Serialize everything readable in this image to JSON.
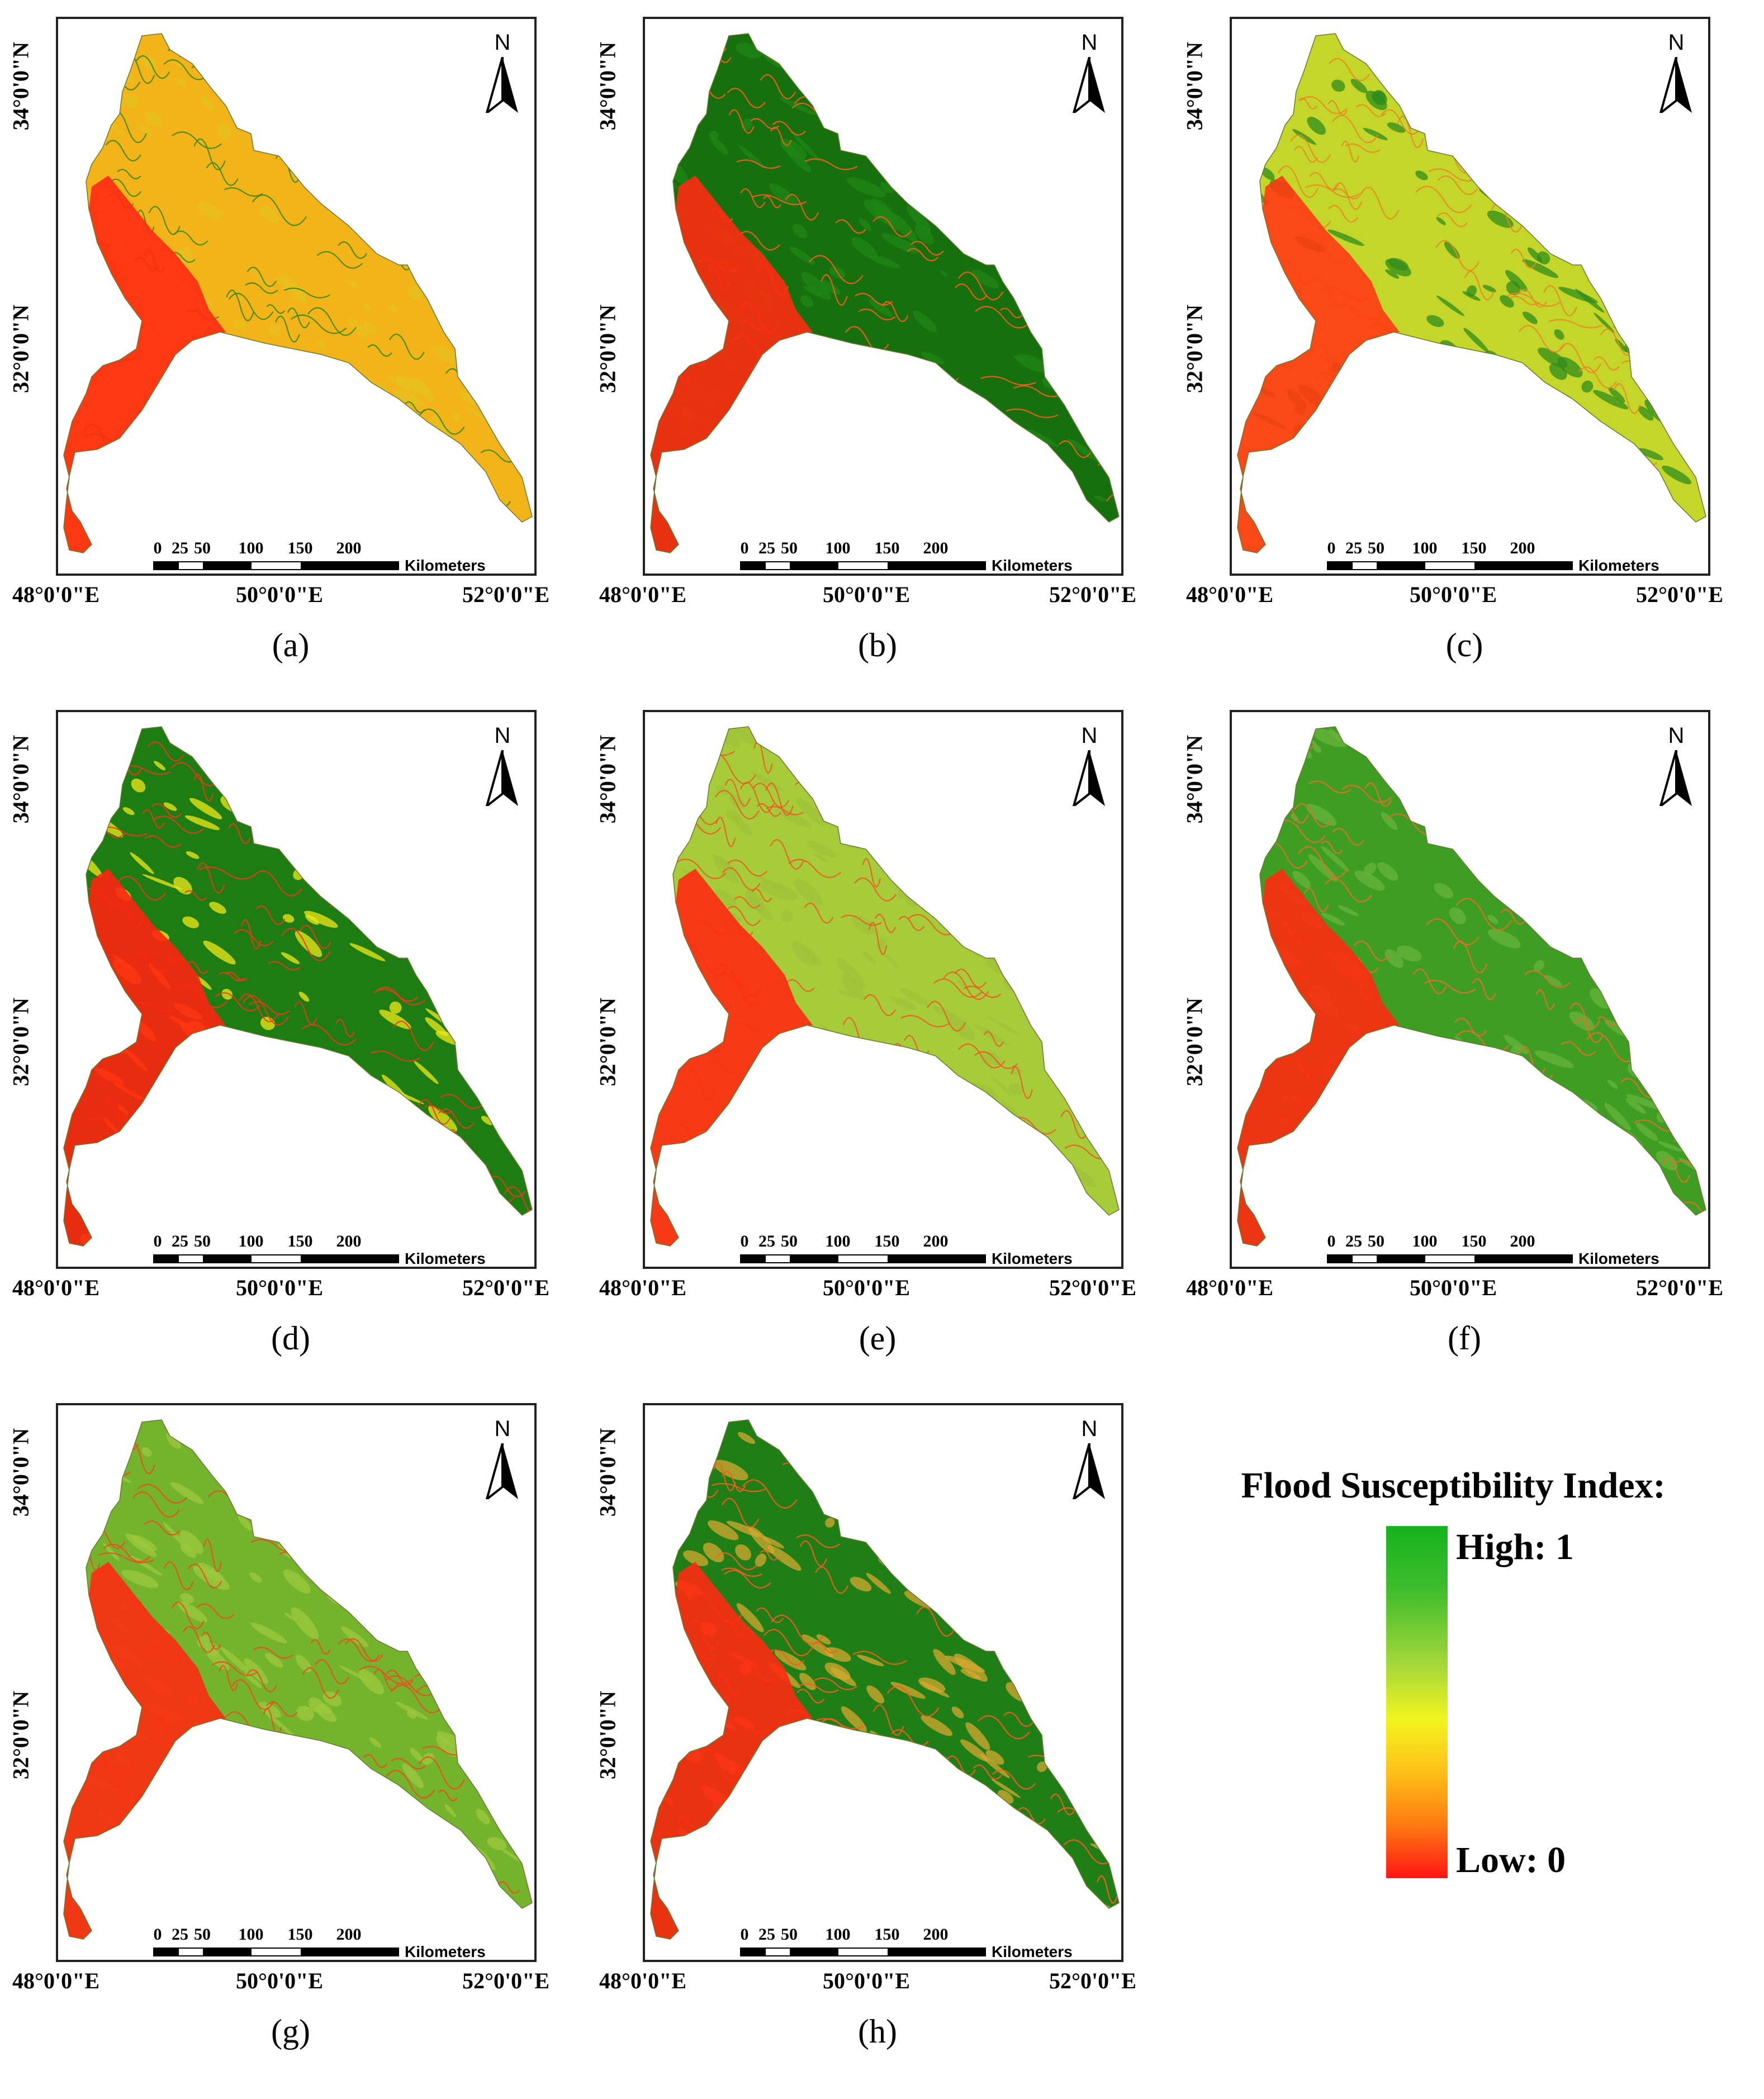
{
  "figure": {
    "panels": [
      {
        "id": "a",
        "caption": "(a)",
        "palette": {
          "base": "#f2b418",
          "mid": "#e5c020",
          "stream": "#3a8a1c",
          "low": "#ff2a12"
        }
      },
      {
        "id": "b",
        "caption": "(b)",
        "palette": {
          "base": "#16700e",
          "mid": "#1f8616",
          "stream": "#ff5a1e",
          "low": "#ff2a12"
        }
      },
      {
        "id": "c",
        "caption": "(c)",
        "palette": {
          "base": "#c5d62a",
          "mid": "#2e8c1a",
          "stream": "#e88822",
          "low": "#ff3a14"
        }
      },
      {
        "id": "d",
        "caption": "(d)",
        "palette": {
          "base": "#1d7c12",
          "mid": "#f2e818",
          "stream": "#ee3a18",
          "low": "#ff2410"
        }
      },
      {
        "id": "e",
        "caption": "(e)",
        "palette": {
          "base": "#a6cc3a",
          "mid": "#9fc23a",
          "stream": "#ef5a22",
          "low": "#ff2a12"
        }
      },
      {
        "id": "f",
        "caption": "(f)",
        "palette": {
          "base": "#3e9e24",
          "mid": "#67b33a",
          "stream": "#f06a2a",
          "low": "#ff2a12"
        }
      },
      {
        "id": "g",
        "caption": "(g)",
        "palette": {
          "base": "#74b32c",
          "mid": "#9cc83c",
          "stream": "#ee4a1e",
          "low": "#ff2a12"
        }
      },
      {
        "id": "h",
        "caption": "(h)",
        "palette": {
          "base": "#1f7e16",
          "mid": "#d8a830",
          "stream": "#ff5a1e",
          "low": "#ff2a12"
        }
      }
    ],
    "axes": {
      "x_ticks": [
        "48°0'0\"E",
        "50°0'0\"E",
        "52°0'0\"E"
      ],
      "y_ticks": [
        "34°0'0\"N",
        "32°0'0\"N"
      ]
    },
    "north_arrow": {
      "label": "N",
      "icon": "north-arrow-icon"
    },
    "scale_bar": {
      "ticks": [
        "0",
        "25",
        "50",
        "100",
        "150",
        "200"
      ],
      "unit": "Kilometers"
    },
    "legend": {
      "title": "Flood Susceptibility Index:",
      "high_label": "High: 1",
      "low_label": "Low: 0",
      "colors": [
        "#14b31e",
        "#a8d83a",
        "#f1f51d",
        "#ff7a12",
        "#ff1414"
      ]
    }
  }
}
